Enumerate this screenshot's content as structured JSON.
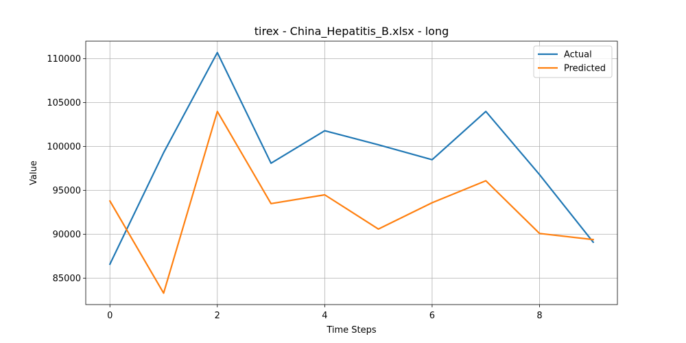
{
  "chart_data": {
    "type": "line",
    "title": "tirex - China_Hepatitis_B.xlsx - long",
    "xlabel": "Time Steps",
    "ylabel": "Value",
    "xlim": [
      -0.45,
      9.45
    ],
    "ylim": [
      82000,
      112000
    ],
    "x_ticks": [
      0,
      2,
      4,
      6,
      8
    ],
    "y_ticks": [
      85000,
      90000,
      95000,
      100000,
      105000,
      110000
    ],
    "grid": true,
    "legend_position": "top-right",
    "x": [
      0,
      1,
      2,
      3,
      4,
      5,
      6,
      7,
      8,
      9
    ],
    "series": [
      {
        "name": "Actual",
        "color": "#1f77b4",
        "values": [
          86600,
          99300,
          110700,
          98100,
          101800,
          100200,
          98500,
          104000,
          96800,
          89100
        ]
      },
      {
        "name": "Predicted",
        "color": "#ff7f0e",
        "values": [
          93800,
          83300,
          104000,
          93500,
          94500,
          90600,
          93600,
          96100,
          90100,
          89400
        ]
      }
    ]
  }
}
